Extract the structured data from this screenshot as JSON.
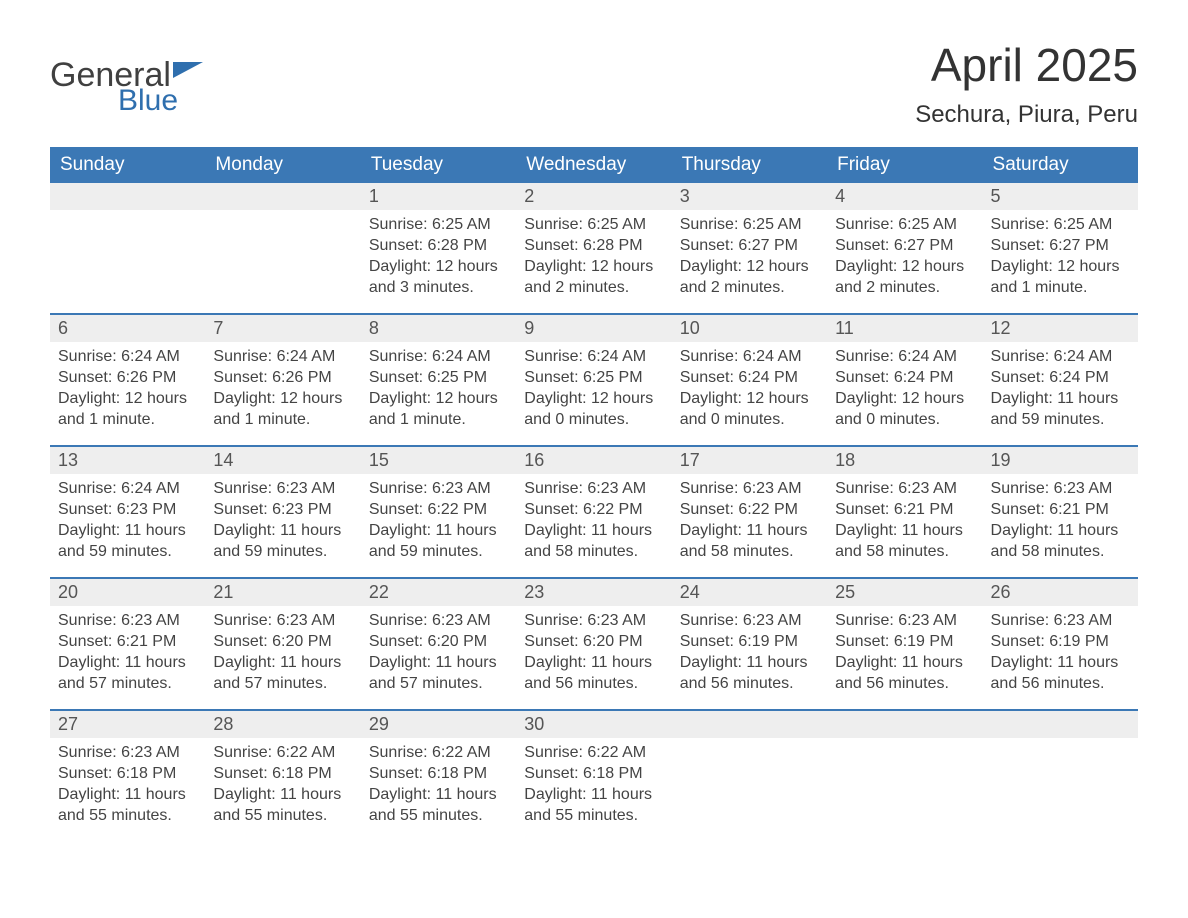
{
  "logo": {
    "text_general": "General",
    "text_blue": "Blue",
    "flag_color": "#2f6fae",
    "text_general_color": "#404040",
    "text_blue_color": "#2f6fae"
  },
  "title": "April 2025",
  "location": "Sechura, Piura, Peru",
  "colors": {
    "header_bg": "#3b78b5",
    "header_text": "#ffffff",
    "daynum_bg": "#eeeeee",
    "daynum_text": "#555555",
    "body_text": "#444444",
    "week_border": "#3b78b5",
    "background": "#ffffff"
  },
  "day_labels": [
    "Sunday",
    "Monday",
    "Tuesday",
    "Wednesday",
    "Thursday",
    "Friday",
    "Saturday"
  ],
  "weeks": [
    [
      {
        "num": "",
        "sunrise": "",
        "sunset": "",
        "daylight1": "",
        "daylight2": ""
      },
      {
        "num": "",
        "sunrise": "",
        "sunset": "",
        "daylight1": "",
        "daylight2": ""
      },
      {
        "num": "1",
        "sunrise": "Sunrise: 6:25 AM",
        "sunset": "Sunset: 6:28 PM",
        "daylight1": "Daylight: 12 hours",
        "daylight2": "and 3 minutes."
      },
      {
        "num": "2",
        "sunrise": "Sunrise: 6:25 AM",
        "sunset": "Sunset: 6:28 PM",
        "daylight1": "Daylight: 12 hours",
        "daylight2": "and 2 minutes."
      },
      {
        "num": "3",
        "sunrise": "Sunrise: 6:25 AM",
        "sunset": "Sunset: 6:27 PM",
        "daylight1": "Daylight: 12 hours",
        "daylight2": "and 2 minutes."
      },
      {
        "num": "4",
        "sunrise": "Sunrise: 6:25 AM",
        "sunset": "Sunset: 6:27 PM",
        "daylight1": "Daylight: 12 hours",
        "daylight2": "and 2 minutes."
      },
      {
        "num": "5",
        "sunrise": "Sunrise: 6:25 AM",
        "sunset": "Sunset: 6:27 PM",
        "daylight1": "Daylight: 12 hours",
        "daylight2": "and 1 minute."
      }
    ],
    [
      {
        "num": "6",
        "sunrise": "Sunrise: 6:24 AM",
        "sunset": "Sunset: 6:26 PM",
        "daylight1": "Daylight: 12 hours",
        "daylight2": "and 1 minute."
      },
      {
        "num": "7",
        "sunrise": "Sunrise: 6:24 AM",
        "sunset": "Sunset: 6:26 PM",
        "daylight1": "Daylight: 12 hours",
        "daylight2": "and 1 minute."
      },
      {
        "num": "8",
        "sunrise": "Sunrise: 6:24 AM",
        "sunset": "Sunset: 6:25 PM",
        "daylight1": "Daylight: 12 hours",
        "daylight2": "and 1 minute."
      },
      {
        "num": "9",
        "sunrise": "Sunrise: 6:24 AM",
        "sunset": "Sunset: 6:25 PM",
        "daylight1": "Daylight: 12 hours",
        "daylight2": "and 0 minutes."
      },
      {
        "num": "10",
        "sunrise": "Sunrise: 6:24 AM",
        "sunset": "Sunset: 6:24 PM",
        "daylight1": "Daylight: 12 hours",
        "daylight2": "and 0 minutes."
      },
      {
        "num": "11",
        "sunrise": "Sunrise: 6:24 AM",
        "sunset": "Sunset: 6:24 PM",
        "daylight1": "Daylight: 12 hours",
        "daylight2": "and 0 minutes."
      },
      {
        "num": "12",
        "sunrise": "Sunrise: 6:24 AM",
        "sunset": "Sunset: 6:24 PM",
        "daylight1": "Daylight: 11 hours",
        "daylight2": "and 59 minutes."
      }
    ],
    [
      {
        "num": "13",
        "sunrise": "Sunrise: 6:24 AM",
        "sunset": "Sunset: 6:23 PM",
        "daylight1": "Daylight: 11 hours",
        "daylight2": "and 59 minutes."
      },
      {
        "num": "14",
        "sunrise": "Sunrise: 6:23 AM",
        "sunset": "Sunset: 6:23 PM",
        "daylight1": "Daylight: 11 hours",
        "daylight2": "and 59 minutes."
      },
      {
        "num": "15",
        "sunrise": "Sunrise: 6:23 AM",
        "sunset": "Sunset: 6:22 PM",
        "daylight1": "Daylight: 11 hours",
        "daylight2": "and 59 minutes."
      },
      {
        "num": "16",
        "sunrise": "Sunrise: 6:23 AM",
        "sunset": "Sunset: 6:22 PM",
        "daylight1": "Daylight: 11 hours",
        "daylight2": "and 58 minutes."
      },
      {
        "num": "17",
        "sunrise": "Sunrise: 6:23 AM",
        "sunset": "Sunset: 6:22 PM",
        "daylight1": "Daylight: 11 hours",
        "daylight2": "and 58 minutes."
      },
      {
        "num": "18",
        "sunrise": "Sunrise: 6:23 AM",
        "sunset": "Sunset: 6:21 PM",
        "daylight1": "Daylight: 11 hours",
        "daylight2": "and 58 minutes."
      },
      {
        "num": "19",
        "sunrise": "Sunrise: 6:23 AM",
        "sunset": "Sunset: 6:21 PM",
        "daylight1": "Daylight: 11 hours",
        "daylight2": "and 58 minutes."
      }
    ],
    [
      {
        "num": "20",
        "sunrise": "Sunrise: 6:23 AM",
        "sunset": "Sunset: 6:21 PM",
        "daylight1": "Daylight: 11 hours",
        "daylight2": "and 57 minutes."
      },
      {
        "num": "21",
        "sunrise": "Sunrise: 6:23 AM",
        "sunset": "Sunset: 6:20 PM",
        "daylight1": "Daylight: 11 hours",
        "daylight2": "and 57 minutes."
      },
      {
        "num": "22",
        "sunrise": "Sunrise: 6:23 AM",
        "sunset": "Sunset: 6:20 PM",
        "daylight1": "Daylight: 11 hours",
        "daylight2": "and 57 minutes."
      },
      {
        "num": "23",
        "sunrise": "Sunrise: 6:23 AM",
        "sunset": "Sunset: 6:20 PM",
        "daylight1": "Daylight: 11 hours",
        "daylight2": "and 56 minutes."
      },
      {
        "num": "24",
        "sunrise": "Sunrise: 6:23 AM",
        "sunset": "Sunset: 6:19 PM",
        "daylight1": "Daylight: 11 hours",
        "daylight2": "and 56 minutes."
      },
      {
        "num": "25",
        "sunrise": "Sunrise: 6:23 AM",
        "sunset": "Sunset: 6:19 PM",
        "daylight1": "Daylight: 11 hours",
        "daylight2": "and 56 minutes."
      },
      {
        "num": "26",
        "sunrise": "Sunrise: 6:23 AM",
        "sunset": "Sunset: 6:19 PM",
        "daylight1": "Daylight: 11 hours",
        "daylight2": "and 56 minutes."
      }
    ],
    [
      {
        "num": "27",
        "sunrise": "Sunrise: 6:23 AM",
        "sunset": "Sunset: 6:18 PM",
        "daylight1": "Daylight: 11 hours",
        "daylight2": "and 55 minutes."
      },
      {
        "num": "28",
        "sunrise": "Sunrise: 6:22 AM",
        "sunset": "Sunset: 6:18 PM",
        "daylight1": "Daylight: 11 hours",
        "daylight2": "and 55 minutes."
      },
      {
        "num": "29",
        "sunrise": "Sunrise: 6:22 AM",
        "sunset": "Sunset: 6:18 PM",
        "daylight1": "Daylight: 11 hours",
        "daylight2": "and 55 minutes."
      },
      {
        "num": "30",
        "sunrise": "Sunrise: 6:22 AM",
        "sunset": "Sunset: 6:18 PM",
        "daylight1": "Daylight: 11 hours",
        "daylight2": "and 55 minutes."
      },
      {
        "num": "",
        "sunrise": "",
        "sunset": "",
        "daylight1": "",
        "daylight2": ""
      },
      {
        "num": "",
        "sunrise": "",
        "sunset": "",
        "daylight1": "",
        "daylight2": ""
      },
      {
        "num": "",
        "sunrise": "",
        "sunset": "",
        "daylight1": "",
        "daylight2": ""
      }
    ]
  ]
}
